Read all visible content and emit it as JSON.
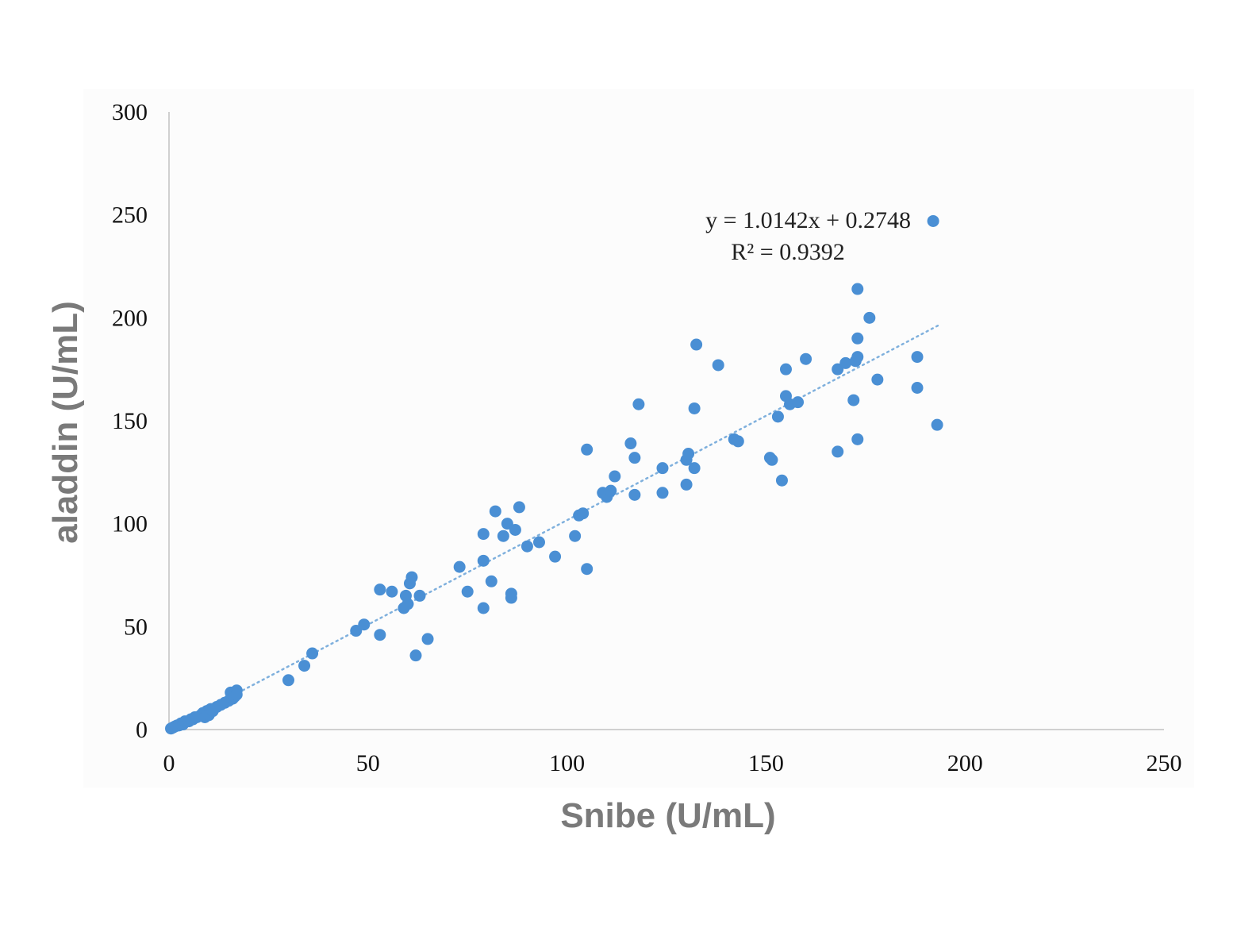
{
  "chart_data": {
    "type": "scatter",
    "xlabel": "Snibe (U/mL)",
    "ylabel": "aladdin (U/mL)",
    "xlim": [
      0,
      250
    ],
    "ylim": [
      0,
      300
    ],
    "x_ticks": [
      "0",
      "50",
      "100",
      "150",
      "200",
      "250"
    ],
    "y_ticks": [
      "0",
      "50",
      "100",
      "150",
      "200",
      "250",
      "300"
    ],
    "grid": false,
    "legend": "none",
    "trendline": {
      "equation": "y = 1.0142x + 0.2748",
      "r_squared": "R² = 0.9392",
      "slope": 1.0142,
      "intercept": 0.2748,
      "x_range": [
        0,
        194
      ],
      "style": "dotted"
    },
    "series": [
      {
        "color": "#4a8fd4",
        "points": [
          [
            0.5,
            0.5
          ],
          [
            1,
            1
          ],
          [
            1.5,
            1.5
          ],
          [
            2,
            2
          ],
          [
            2.5,
            2
          ],
          [
            3,
            3
          ],
          [
            3.5,
            2.5
          ],
          [
            4,
            4
          ],
          [
            5,
            4
          ],
          [
            5.5,
            5
          ],
          [
            6,
            5
          ],
          [
            6.5,
            6
          ],
          [
            7,
            6
          ],
          [
            8,
            7
          ],
          [
            8.5,
            8
          ],
          [
            9,
            6
          ],
          [
            9.5,
            9
          ],
          [
            10,
            7
          ],
          [
            10.5,
            10
          ],
          [
            11,
            9
          ],
          [
            12,
            11
          ],
          [
            13,
            12
          ],
          [
            14,
            13
          ],
          [
            15,
            14
          ],
          [
            15.5,
            18
          ],
          [
            16,
            15
          ],
          [
            16.5,
            16
          ],
          [
            17,
            19
          ],
          [
            17,
            17
          ],
          [
            30,
            24
          ],
          [
            34,
            31
          ],
          [
            36,
            37
          ],
          [
            47,
            48
          ],
          [
            49,
            51
          ],
          [
            53,
            46
          ],
          [
            53,
            68
          ],
          [
            56,
            67
          ],
          [
            59,
            59
          ],
          [
            59.5,
            65
          ],
          [
            60,
            61
          ],
          [
            60.5,
            71
          ],
          [
            61,
            74
          ],
          [
            62,
            36
          ],
          [
            63,
            65
          ],
          [
            65,
            44
          ],
          [
            73,
            79
          ],
          [
            75,
            67
          ],
          [
            79,
            59
          ],
          [
            79,
            95
          ],
          [
            79,
            82
          ],
          [
            81,
            72
          ],
          [
            82,
            106
          ],
          [
            84,
            94
          ],
          [
            85,
            100
          ],
          [
            86,
            64
          ],
          [
            86,
            66
          ],
          [
            87,
            97
          ],
          [
            88,
            108
          ],
          [
            90,
            89
          ],
          [
            93,
            91
          ],
          [
            97,
            84
          ],
          [
            102,
            94
          ],
          [
            103,
            104
          ],
          [
            104,
            105
          ],
          [
            105,
            78
          ],
          [
            105,
            136
          ],
          [
            109,
            115
          ],
          [
            110,
            113
          ],
          [
            111,
            116
          ],
          [
            112,
            123
          ],
          [
            116,
            139
          ],
          [
            117,
            132
          ],
          [
            117,
            114
          ],
          [
            118,
            158
          ],
          [
            124,
            127
          ],
          [
            124,
            115
          ],
          [
            130,
            119
          ],
          [
            130,
            131
          ],
          [
            130.5,
            134
          ],
          [
            132,
            127
          ],
          [
            132,
            156
          ],
          [
            132.5,
            187
          ],
          [
            138,
            177
          ],
          [
            142,
            141
          ],
          [
            143,
            140
          ],
          [
            151,
            132
          ],
          [
            151.5,
            131
          ],
          [
            153,
            152
          ],
          [
            154,
            121
          ],
          [
            155,
            175
          ],
          [
            155,
            162
          ],
          [
            156,
            158
          ],
          [
            158,
            159
          ],
          [
            160,
            180
          ],
          [
            168,
            135
          ],
          [
            168,
            175
          ],
          [
            170,
            178
          ],
          [
            172,
            160
          ],
          [
            172.5,
            179
          ],
          [
            173,
            214
          ],
          [
            173,
            190
          ],
          [
            173,
            141
          ],
          [
            173,
            181
          ],
          [
            176,
            200
          ],
          [
            178,
            170
          ],
          [
            188,
            181
          ],
          [
            188,
            166
          ],
          [
            193,
            148
          ],
          [
            192,
            247
          ]
        ]
      }
    ]
  }
}
